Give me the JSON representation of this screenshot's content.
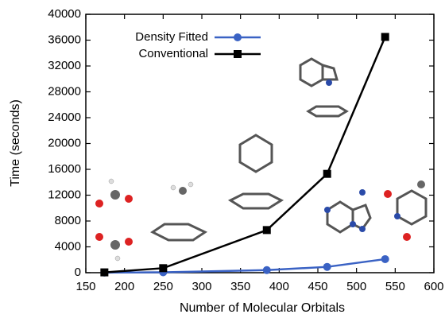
{
  "chart_data": {
    "type": "line",
    "x_label": "Number of Molecular Orbitals",
    "y_label": "Time (seconds)",
    "xlim": [
      150,
      600
    ],
    "xticks": [
      150,
      200,
      250,
      300,
      350,
      400,
      450,
      500,
      550,
      600
    ],
    "ylim": [
      0,
      40000
    ],
    "yticks": [
      0,
      4000,
      8000,
      12000,
      16000,
      20000,
      24000,
      28000,
      32000,
      36000,
      40000
    ],
    "legend": "upper left",
    "series": [
      {
        "name": "Density Fitted",
        "color": "#3a62c4",
        "marker": "circle",
        "x": [
          174,
          250,
          384,
          462,
          537
        ],
        "values": [
          20,
          60,
          400,
          900,
          2100
        ]
      },
      {
        "name": "Conventional",
        "color": "#000000",
        "marker": "square",
        "x": [
          174,
          250,
          384,
          462,
          537
        ],
        "values": [
          50,
          700,
          6600,
          15300,
          36500
        ]
      }
    ]
  }
}
